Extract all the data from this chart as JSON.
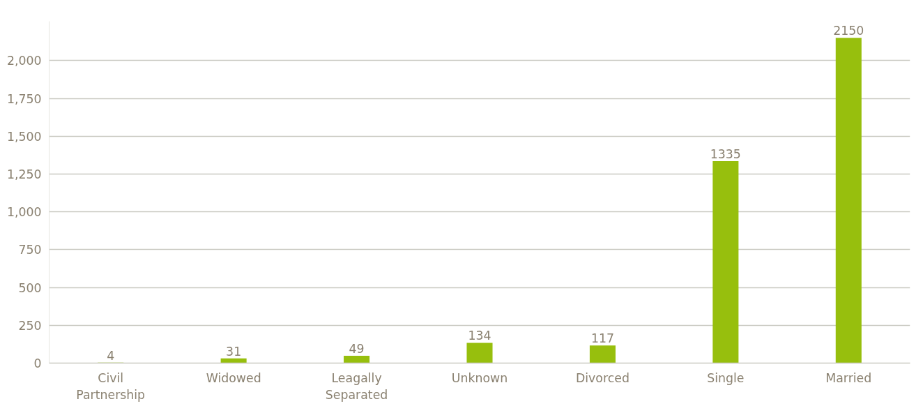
{
  "chart_data": {
    "type": "bar",
    "categories": [
      "Civil Partnership",
      "Widowed",
      "Leagally Separated",
      "Unknown",
      "Divorced",
      "Single",
      "Married"
    ],
    "values": [
      4,
      31,
      49,
      134,
      117,
      1335,
      2150
    ],
    "color": "#97bf0d",
    "ylim": [
      0,
      2260
    ],
    "yticks": [
      0,
      250,
      500,
      750,
      {
        "value": 1000,
        "label": "1,000"
      },
      {
        "value": 1250,
        "label": "1,250"
      },
      {
        "value": 1500,
        "label": "1,500"
      },
      {
        "value": 1750,
        "label": "1,750"
      },
      {
        "value": 2000,
        "label": "2,000"
      }
    ],
    "grid": "y",
    "data_labels": true
  }
}
